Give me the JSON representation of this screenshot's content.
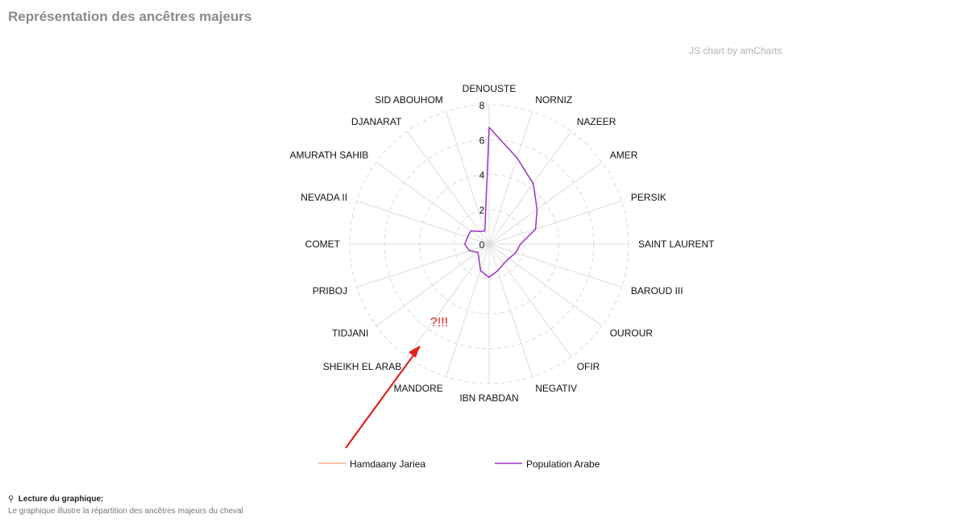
{
  "header": {
    "title": "Représentation des ancêtres majeurs",
    "credit": "JS chart by amCharts"
  },
  "footer": {
    "lecture_title": "Lecture du graphique:",
    "lecture_text": "Le graphique illustre la répartition des ancêtres majeurs du cheval"
  },
  "annotation": {
    "text": "?!!!",
    "color": "#e02020"
  },
  "chart_data": {
    "type": "radar",
    "title": "Représentation des ancêtres majeurs",
    "categories": [
      "DENOUSTE",
      "NORNIZ",
      "NAZEER",
      "AMER",
      "PERSIK",
      "SAINT LAURENT",
      "BAROUD III",
      "OUROUR",
      "OFIR",
      "NEGATIV",
      "IBN RABDAN",
      "MANDORE",
      "SHEIKH EL ARAB",
      "TIDJANI",
      "PRIBOJ",
      "COMET",
      "NEVADA II",
      "AMURATH SAHIB",
      "DJANARAT",
      "SID ABOUHOM"
    ],
    "r_ticks": [
      "0",
      "2",
      "4",
      "6",
      "8"
    ],
    "rlim": [
      0,
      8
    ],
    "grid": true,
    "legend_position": "bottom",
    "series": [
      {
        "name": "Hamdaany Jariea",
        "color": "#f4b183",
        "values": [
          0,
          0,
          0,
          0,
          0,
          0,
          0,
          0,
          0,
          0,
          0,
          0,
          0,
          0,
          0,
          0,
          0,
          0,
          0,
          0
        ]
      },
      {
        "name": "Population Arabe",
        "color": "#9b30c8",
        "values": [
          6.7,
          5.2,
          4.3,
          3.4,
          2.8,
          1.8,
          1.6,
          1.4,
          1.4,
          1.6,
          1.9,
          1.6,
          1.0,
          0.8,
          1.2,
          1.4,
          1.3,
          1.3,
          0.9,
          0.8
        ]
      }
    ]
  }
}
